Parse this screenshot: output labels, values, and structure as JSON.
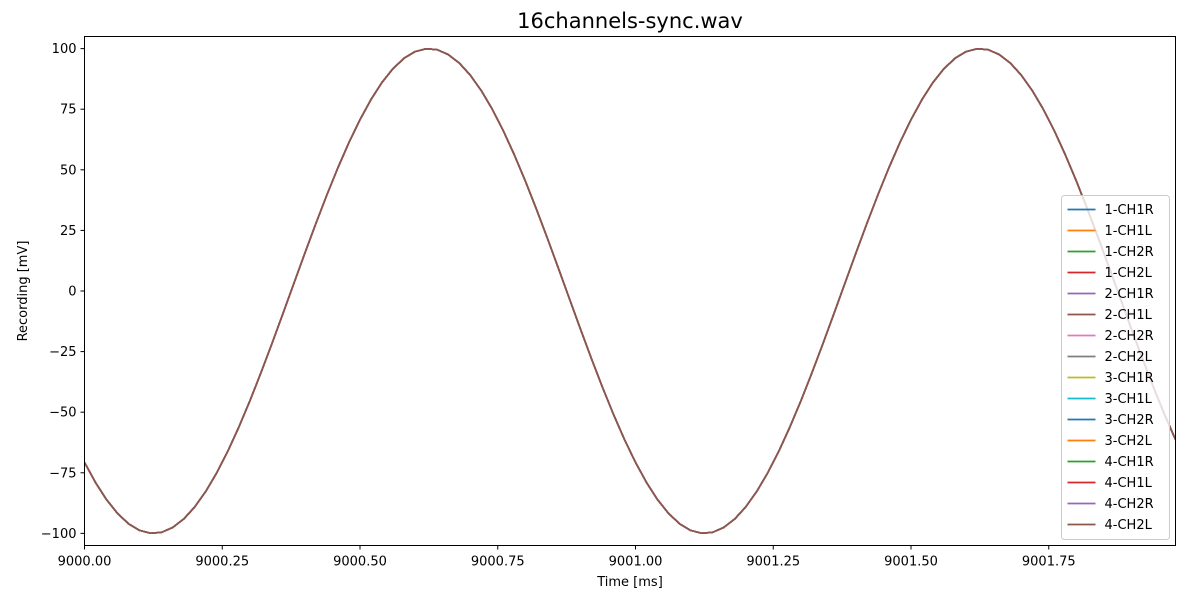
{
  "chart_data": {
    "type": "line",
    "title": "16channels-sync.wav",
    "xlabel": "Time [ms]",
    "ylabel": "Recording [mV]",
    "xlim": [
      9000.0,
      9001.98
    ],
    "ylim": [
      -105,
      105
    ],
    "xticks": [
      9000.0,
      9000.25,
      9000.5,
      9000.75,
      9001.0,
      9001.25,
      9001.5,
      9001.75
    ],
    "xtick_labels": [
      "9000.00",
      "9000.25",
      "9000.50",
      "9000.75",
      "9001.00",
      "9001.25",
      "9001.50",
      "9001.75"
    ],
    "yticks": [
      100,
      75,
      50,
      25,
      0,
      -25,
      -50,
      -75,
      -100
    ],
    "ytick_labels": [
      "100",
      "75",
      "50",
      "25",
      "0",
      "−25",
      "−50",
      "−75",
      "−100"
    ],
    "grid": false,
    "legend_position": "lower-right",
    "signal": {
      "waveform": "sine",
      "amplitude_mV": 100,
      "frequency_kHz": 1.0,
      "phase_deg": 225,
      "sample_spacing_ms": 0.02
    },
    "series": [
      {
        "name": "1-CH1R",
        "color": "#1f77b4"
      },
      {
        "name": "1-CH1L",
        "color": "#ff7f0e"
      },
      {
        "name": "1-CH2R",
        "color": "#2ca02c"
      },
      {
        "name": "1-CH2L",
        "color": "#d62728"
      },
      {
        "name": "2-CH1R",
        "color": "#9467bd"
      },
      {
        "name": "2-CH1L",
        "color": "#8c564b"
      },
      {
        "name": "2-CH2R",
        "color": "#e377c2"
      },
      {
        "name": "2-CH2L",
        "color": "#7f7f7f"
      },
      {
        "name": "3-CH1R",
        "color": "#bcbd22"
      },
      {
        "name": "3-CH1L",
        "color": "#17becf"
      },
      {
        "name": "3-CH2R",
        "color": "#1f77b4"
      },
      {
        "name": "3-CH2L",
        "color": "#ff7f0e"
      },
      {
        "name": "4-CH1R",
        "color": "#2ca02c"
      },
      {
        "name": "4-CH1L",
        "color": "#d62728"
      },
      {
        "name": "4-CH2R",
        "color": "#9467bd"
      },
      {
        "name": "4-CH2L",
        "color": "#8c564b"
      }
    ]
  }
}
